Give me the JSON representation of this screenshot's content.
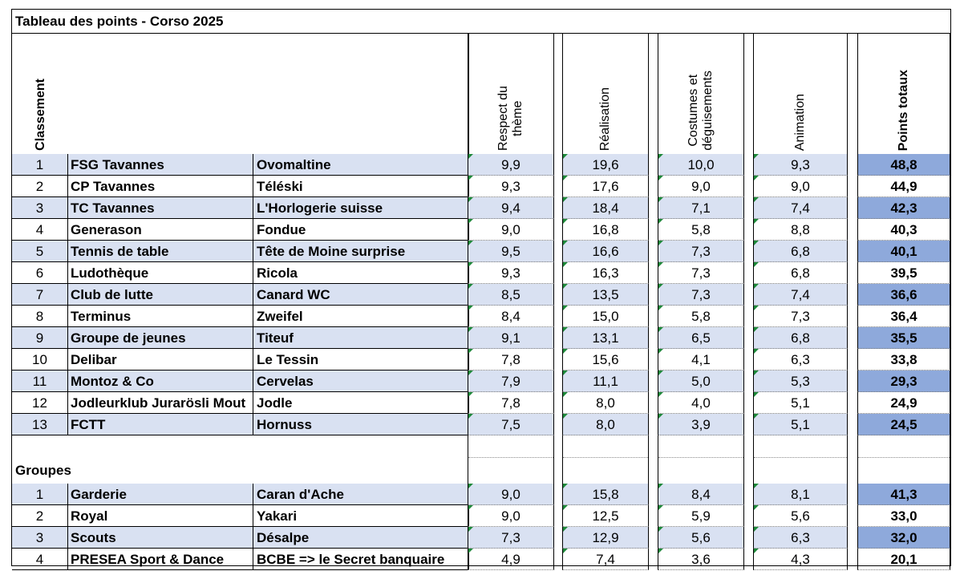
{
  "title": "Tableau des points - Corso 2025",
  "headers": {
    "rank": "Classement",
    "respect": [
      "Respect du",
      "thème"
    ],
    "realisation": "Réalisation",
    "costumes": [
      "Costumes et",
      "déguisements"
    ],
    "animation": "Animation",
    "total": "Points totaux"
  },
  "rows": [
    {
      "rank": "1",
      "name": "FSG Tavannes",
      "theme": "Ovomaltine",
      "respect": "9,9",
      "realisation": "19,6",
      "costumes": "10,0",
      "animation": "9,3",
      "total": "48,8"
    },
    {
      "rank": "2",
      "name": "CP Tavannes",
      "theme": "Téléski",
      "respect": "9,3",
      "realisation": "17,6",
      "costumes": "9,0",
      "animation": "9,0",
      "total": "44,9"
    },
    {
      "rank": "3",
      "name": "TC Tavannes",
      "theme": "L'Horlogerie suisse",
      "respect": "9,4",
      "realisation": "18,4",
      "costumes": "7,1",
      "animation": "7,4",
      "total": "42,3"
    },
    {
      "rank": "4",
      "name": "Generason",
      "theme": "Fondue",
      "respect": "9,0",
      "realisation": "16,8",
      "costumes": "5,8",
      "animation": "8,8",
      "total": "40,3"
    },
    {
      "rank": "5",
      "name": "Tennis de table",
      "theme": "Tête de Moine surprise",
      "respect": "9,5",
      "realisation": "16,6",
      "costumes": "7,3",
      "animation": "6,8",
      "total": "40,1"
    },
    {
      "rank": "6",
      "name": "Ludothèque",
      "theme": "Ricola",
      "respect": "9,3",
      "realisation": "16,3",
      "costumes": "7,3",
      "animation": "6,8",
      "total": "39,5"
    },
    {
      "rank": "7",
      "name": "Club de lutte",
      "theme": "Canard WC",
      "respect": "8,5",
      "realisation": "13,5",
      "costumes": "7,3",
      "animation": "7,4",
      "total": "36,6"
    },
    {
      "rank": "8",
      "name": "Terminus",
      "theme": "Zweifel",
      "respect": "8,4",
      "realisation": "15,0",
      "costumes": "5,8",
      "animation": "7,3",
      "total": "36,4"
    },
    {
      "rank": "9",
      "name": "Groupe de jeunes",
      "theme": "Titeuf",
      "respect": "9,1",
      "realisation": "13,1",
      "costumes": "6,5",
      "animation": "6,8",
      "total": "35,5"
    },
    {
      "rank": "10",
      "name": "Delibar",
      "theme": "Le Tessin",
      "respect": "7,8",
      "realisation": "15,6",
      "costumes": "4,1",
      "animation": "6,3",
      "total": "33,8"
    },
    {
      "rank": "11",
      "name": "Montoz & Co",
      "theme": "Cervelas",
      "respect": "7,9",
      "realisation": "11,1",
      "costumes": "5,0",
      "animation": "5,3",
      "total": "29,3"
    },
    {
      "rank": "12",
      "name": "Jodleurklub Jurarösli Mout",
      "theme": "Jodle",
      "respect": "7,8",
      "realisation": "8,0",
      "costumes": "4,0",
      "animation": "5,1",
      "total": "24,9"
    },
    {
      "rank": "13",
      "name": "FCTT",
      "theme": "Hornuss",
      "respect": "7,5",
      "realisation": "8,0",
      "costumes": "3,9",
      "animation": "5,1",
      "total": "24,5"
    }
  ],
  "groups_label": "Groupes",
  "groups": [
    {
      "rank": "1",
      "name": "Garderie",
      "theme": "Caran d'Ache",
      "respect": "9,0",
      "realisation": "15,8",
      "costumes": "8,4",
      "animation": "8,1",
      "total": "41,3"
    },
    {
      "rank": "2",
      "name": "Royal",
      "theme": "Yakari",
      "respect": "9,0",
      "realisation": "12,5",
      "costumes": "5,9",
      "animation": "5,6",
      "total": "33,0"
    },
    {
      "rank": "3",
      "name": "Scouts",
      "theme": "Désalpe",
      "respect": "7,3",
      "realisation": "12,9",
      "costumes": "5,6",
      "animation": "6,3",
      "total": "32,0"
    },
    {
      "rank": "4",
      "name": "PRESEA Sport & Dance",
      "theme": "BCBE => le Secret banquaire",
      "respect": "4,9",
      "realisation": "7,4",
      "costumes": "3,6",
      "animation": "4,3",
      "total": "20,1"
    }
  ],
  "colors": {
    "row_shade": "#d9e1f2",
    "total_shade": "#8ea9db",
    "comment_marker": "#1e8a3a"
  }
}
